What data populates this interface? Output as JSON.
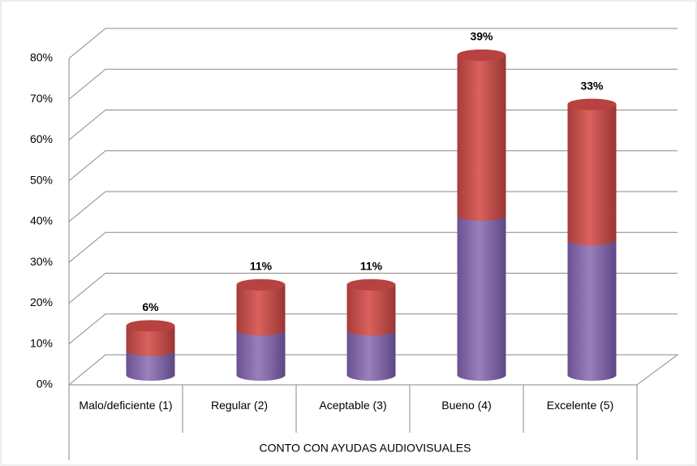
{
  "chart_data": {
    "type": "bar3d_stacked",
    "categories": [
      "Malo/deficiente (1)",
      "Regular (2)",
      "Aceptable (3)",
      "Bueno (4)",
      "Excelente (5)"
    ],
    "x_label": "CONTO CON AYUDAS AUDIOVISUALES",
    "series": [
      {
        "color": "#8064a2",
        "values": [
          6,
          11,
          11,
          39,
          33
        ]
      },
      {
        "color": "#c0504d",
        "values": [
          6,
          11,
          11,
          39,
          33
        ],
        "value_labels": [
          "6%",
          "11%",
          "11%",
          "39%",
          "33%"
        ]
      }
    ],
    "ylim": [
      0,
      80
    ],
    "yticks": [
      {
        "value": 0,
        "label": "0%"
      },
      {
        "value": 10,
        "label": "10%"
      },
      {
        "value": 20,
        "label": "20%"
      },
      {
        "value": 30,
        "label": "30%"
      },
      {
        "value": 40,
        "label": "40%"
      },
      {
        "value": 50,
        "label": "50%"
      },
      {
        "value": 60,
        "label": "60%"
      },
      {
        "value": 70,
        "label": "70%"
      },
      {
        "value": 80,
        "label": "80%"
      }
    ],
    "grid": true
  }
}
